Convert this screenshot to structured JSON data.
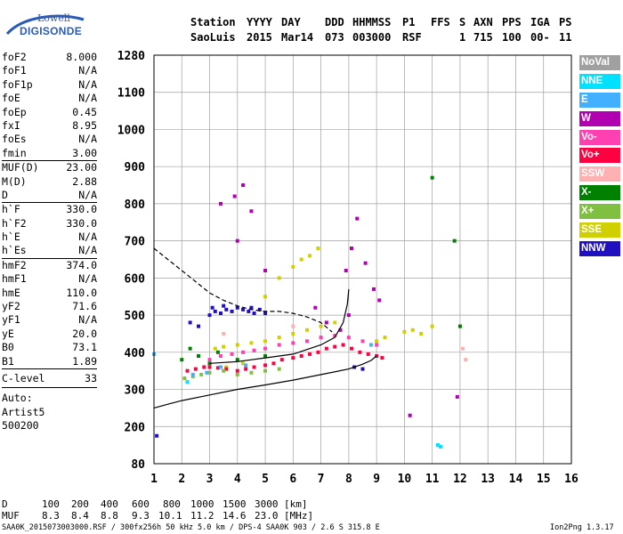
{
  "logo": {
    "line1": "Lowell",
    "line2": "DIGISONDE"
  },
  "header": {
    "labels": [
      "Station",
      "YYYY",
      "DAY",
      "DDD",
      "HHMMSS",
      "P1",
      "FFS",
      "S",
      "AXN",
      "PPS",
      "IGA",
      "PS"
    ],
    "values": [
      "SaoLuis",
      "2015",
      "Mar14",
      "073",
      "003000",
      "RSF",
      "",
      "1",
      "715",
      "100",
      "00-",
      "11"
    ]
  },
  "params": {
    "group1": [
      {
        "name": "foF2",
        "value": "8.000"
      },
      {
        "name": "foF1",
        "value": "N/A"
      },
      {
        "name": "foF1p",
        "value": "N/A"
      },
      {
        "name": "foE",
        "value": "N/A"
      },
      {
        "name": "foEp",
        "value": "0.45"
      },
      {
        "name": "fxI",
        "value": "8.95"
      },
      {
        "name": "foEs",
        "value": "N/A"
      },
      {
        "name": "fmin",
        "value": "3.00"
      }
    ],
    "group2": [
      {
        "name": "MUF(D)",
        "value": "23.00"
      },
      {
        "name": "M(D)",
        "value": "2.88"
      },
      {
        "name": "D",
        "value": "N/A"
      }
    ],
    "group3": [
      {
        "name": "h`F",
        "value": "330.0"
      },
      {
        "name": "h`F2",
        "value": "330.0"
      },
      {
        "name": "h`E",
        "value": "N/A"
      },
      {
        "name": "h`Es",
        "value": "N/A"
      }
    ],
    "group4": [
      {
        "name": "hmF2",
        "value": "374.0"
      },
      {
        "name": "hmF1",
        "value": "N/A"
      },
      {
        "name": "hmE",
        "value": "110.0"
      },
      {
        "name": "yF2",
        "value": "71.6"
      },
      {
        "name": "yF1",
        "value": "N/A"
      },
      {
        "name": "yE",
        "value": "20.0"
      },
      {
        "name": "B0",
        "value": "73.1"
      },
      {
        "name": "B1",
        "value": "1.89"
      }
    ],
    "group5": [
      {
        "name": "C-level",
        "value": "33"
      }
    ],
    "auto": [
      "Auto:",
      "Artist5",
      "500200"
    ]
  },
  "legend": [
    {
      "label": "NoVal",
      "color": "#a0a0a0"
    },
    {
      "label": "NNE",
      "color": "#00e0ff"
    },
    {
      "label": "E",
      "color": "#40b0ff"
    },
    {
      "label": "W",
      "color": "#b000b0"
    },
    {
      "label": "Vo-",
      "color": "#ff40b0"
    },
    {
      "label": "Vo+",
      "color": "#ff0040"
    },
    {
      "label": "SSW",
      "color": "#ffb0b0"
    },
    {
      "label": "X-",
      "color": "#008000"
    },
    {
      "label": "X+",
      "color": "#80c040"
    },
    {
      "label": "SSE",
      "color": "#d0d000"
    },
    {
      "label": "NNW",
      "color": "#2010c0"
    }
  ],
  "muf_table": {
    "d_label": "D",
    "d_values": [
      "100",
      "200",
      "400",
      "600",
      "800",
      "1000",
      "1500",
      "3000"
    ],
    "d_unit": "[km]",
    "muf_label": "MUF",
    "muf_values": [
      "8.3",
      "8.4",
      "8.8",
      "9.3",
      "10.1",
      "11.2",
      "14.6",
      "23.0"
    ],
    "muf_unit": "[MHz]"
  },
  "footer": {
    "left": "SAA0K_2015073003000.RSF / 300fx256h 50 kHz 5.0 km / DPS-4 SAA0K 903 / 2.6 S 315.8 E",
    "right": "Ion2Png 1.3.17"
  },
  "chart_data": {
    "type": "scatter",
    "x_ticks": [
      1,
      2,
      3,
      4,
      5,
      6,
      7,
      8,
      9,
      10,
      11,
      12,
      13,
      14,
      15,
      16
    ],
    "y_ticks": [
      80,
      200,
      300,
      400,
      500,
      600,
      700,
      800,
      900,
      1000,
      1100,
      1280
    ],
    "xlim": [
      1,
      16
    ],
    "ylim": [
      80,
      1280
    ],
    "grid": true,
    "series": [
      {
        "name": "SSE",
        "color": "#d0d000",
        "points": [
          [
            3.2,
            410
          ],
          [
            3.5,
            415
          ],
          [
            4.0,
            420
          ],
          [
            4.5,
            425
          ],
          [
            5.0,
            430
          ],
          [
            5.5,
            440
          ],
          [
            6.0,
            450
          ],
          [
            6.5,
            460
          ],
          [
            7.0,
            470
          ],
          [
            7.5,
            480
          ],
          [
            4.5,
            520
          ],
          [
            5.0,
            550
          ],
          [
            5.5,
            600
          ],
          [
            6.0,
            630
          ],
          [
            6.3,
            650
          ],
          [
            6.6,
            660
          ],
          [
            6.9,
            680
          ],
          [
            9.0,
            430
          ],
          [
            9.3,
            440
          ],
          [
            10.0,
            455
          ],
          [
            10.3,
            460
          ],
          [
            10.6,
            450
          ],
          [
            11.0,
            470
          ],
          [
            3.6,
            360
          ],
          [
            4.2,
            370
          ]
        ]
      },
      {
        "name": "NNW",
        "color": "#2010c0",
        "points": [
          [
            3.0,
            500
          ],
          [
            3.2,
            510
          ],
          [
            3.4,
            505
          ],
          [
            3.6,
            515
          ],
          [
            3.8,
            510
          ],
          [
            4.0,
            520
          ],
          [
            4.2,
            515
          ],
          [
            4.4,
            510
          ],
          [
            4.6,
            505
          ],
          [
            4.8,
            515
          ],
          [
            5.0,
            505
          ],
          [
            3.1,
            520
          ],
          [
            3.5,
            525
          ],
          [
            4.5,
            520
          ],
          [
            2.3,
            480
          ],
          [
            2.6,
            470
          ],
          [
            8.2,
            360
          ],
          [
            8.5,
            355
          ],
          [
            1.1,
            170
          ]
        ]
      },
      {
        "name": "Vo+",
        "color": "#ff0040",
        "points": [
          [
            2.2,
            350
          ],
          [
            2.5,
            355
          ],
          [
            2.8,
            360
          ],
          [
            3.0,
            360
          ],
          [
            3.3,
            358
          ],
          [
            3.6,
            355
          ],
          [
            4.0,
            350
          ],
          [
            4.3,
            355
          ],
          [
            4.6,
            360
          ],
          [
            5.0,
            365
          ],
          [
            5.3,
            370
          ],
          [
            5.6,
            380
          ],
          [
            6.0,
            385
          ],
          [
            6.3,
            390
          ],
          [
            6.6,
            395
          ],
          [
            6.9,
            400
          ],
          [
            7.2,
            410
          ],
          [
            7.5,
            415
          ],
          [
            7.8,
            420
          ],
          [
            8.1,
            410
          ],
          [
            8.4,
            400
          ],
          [
            8.7,
            395
          ],
          [
            9.0,
            390
          ],
          [
            9.2,
            385
          ]
        ]
      },
      {
        "name": "W",
        "color": "#b000b0",
        "points": [
          [
            3.9,
            820
          ],
          [
            4.2,
            850
          ],
          [
            4.5,
            780
          ],
          [
            4.0,
            700
          ],
          [
            7.9,
            620
          ],
          [
            8.1,
            680
          ],
          [
            8.3,
            760
          ],
          [
            8.6,
            640
          ],
          [
            8.9,
            570
          ],
          [
            9.1,
            540
          ],
          [
            7.7,
            460
          ],
          [
            8.0,
            500
          ],
          [
            6.8,
            520
          ],
          [
            7.2,
            480
          ],
          [
            3.4,
            800
          ],
          [
            5.0,
            620
          ],
          [
            10.2,
            230
          ],
          [
            11.9,
            280
          ]
        ]
      },
      {
        "name": "Vo-",
        "color": "#ff40b0",
        "points": [
          [
            3.0,
            380
          ],
          [
            3.4,
            390
          ],
          [
            3.8,
            395
          ],
          [
            4.2,
            400
          ],
          [
            4.6,
            405
          ],
          [
            5.0,
            410
          ],
          [
            5.5,
            420
          ],
          [
            6.0,
            425
          ],
          [
            6.5,
            430
          ],
          [
            7.0,
            440
          ],
          [
            7.5,
            445
          ],
          [
            8.0,
            440
          ],
          [
            8.5,
            430
          ],
          [
            9.0,
            420
          ]
        ]
      },
      {
        "name": "X-",
        "color": "#008000",
        "points": [
          [
            2.0,
            380
          ],
          [
            2.3,
            410
          ],
          [
            2.6,
            390
          ],
          [
            3.0,
            370
          ],
          [
            3.3,
            400
          ],
          [
            4.0,
            380
          ],
          [
            5.0,
            390
          ],
          [
            11.0,
            870
          ],
          [
            12.0,
            470
          ],
          [
            11.8,
            700
          ]
        ]
      },
      {
        "name": "X+",
        "color": "#80c040",
        "points": [
          [
            2.1,
            330
          ],
          [
            2.4,
            335
          ],
          [
            2.7,
            340
          ],
          [
            3.0,
            345
          ],
          [
            3.5,
            350
          ],
          [
            4.0,
            340
          ],
          [
            4.5,
            345
          ],
          [
            5.0,
            350
          ],
          [
            5.5,
            355
          ]
        ]
      },
      {
        "name": "E",
        "color": "#40b0ff",
        "points": [
          [
            2.4,
            340
          ],
          [
            2.9,
            345
          ],
          [
            3.4,
            360
          ],
          [
            4.3,
            365
          ],
          [
            8.8,
            420
          ],
          [
            11.2,
            140
          ],
          [
            1.0,
            395
          ]
        ]
      },
      {
        "name": "NNE",
        "color": "#00e0ff",
        "points": [
          [
            2.2,
            320
          ],
          [
            11.3,
            135
          ],
          [
            11.2,
            140
          ]
        ]
      },
      {
        "name": "SSW",
        "color": "#ffb0b0",
        "points": [
          [
            3.5,
            450
          ],
          [
            6.0,
            470
          ],
          [
            12.1,
            410
          ],
          [
            12.2,
            380
          ]
        ]
      }
    ],
    "curves": [
      {
        "name": "profile-solid",
        "style": "solid",
        "points": [
          [
            1.0,
            250
          ],
          [
            1.5,
            260
          ],
          [
            2.0,
            270
          ],
          [
            3.0,
            285
          ],
          [
            4.0,
            300
          ],
          [
            5.0,
            312
          ],
          [
            6.0,
            325
          ],
          [
            7.0,
            340
          ],
          [
            8.0,
            355
          ],
          [
            8.5,
            368
          ],
          [
            8.8,
            378
          ],
          [
            9.0,
            390
          ]
        ]
      },
      {
        "name": "trace-solid",
        "style": "solid",
        "points": [
          [
            3.0,
            370
          ],
          [
            4.0,
            375
          ],
          [
            5.0,
            385
          ],
          [
            6.0,
            395
          ],
          [
            7.0,
            420
          ],
          [
            7.5,
            440
          ],
          [
            7.8,
            480
          ],
          [
            7.95,
            530
          ],
          [
            8.0,
            570
          ]
        ]
      },
      {
        "name": "profile-dashed",
        "style": "dashed",
        "points": [
          [
            1.0,
            680
          ],
          [
            1.5,
            650
          ],
          [
            2.0,
            620
          ],
          [
            2.5,
            590
          ],
          [
            3.0,
            560
          ],
          [
            3.5,
            540
          ],
          [
            4.0,
            525
          ],
          [
            4.5,
            515
          ],
          [
            5.0,
            510
          ],
          [
            5.5,
            510
          ],
          [
            6.0,
            505
          ],
          [
            6.5,
            495
          ],
          [
            7.0,
            480
          ],
          [
            7.4,
            455
          ]
        ]
      }
    ]
  }
}
